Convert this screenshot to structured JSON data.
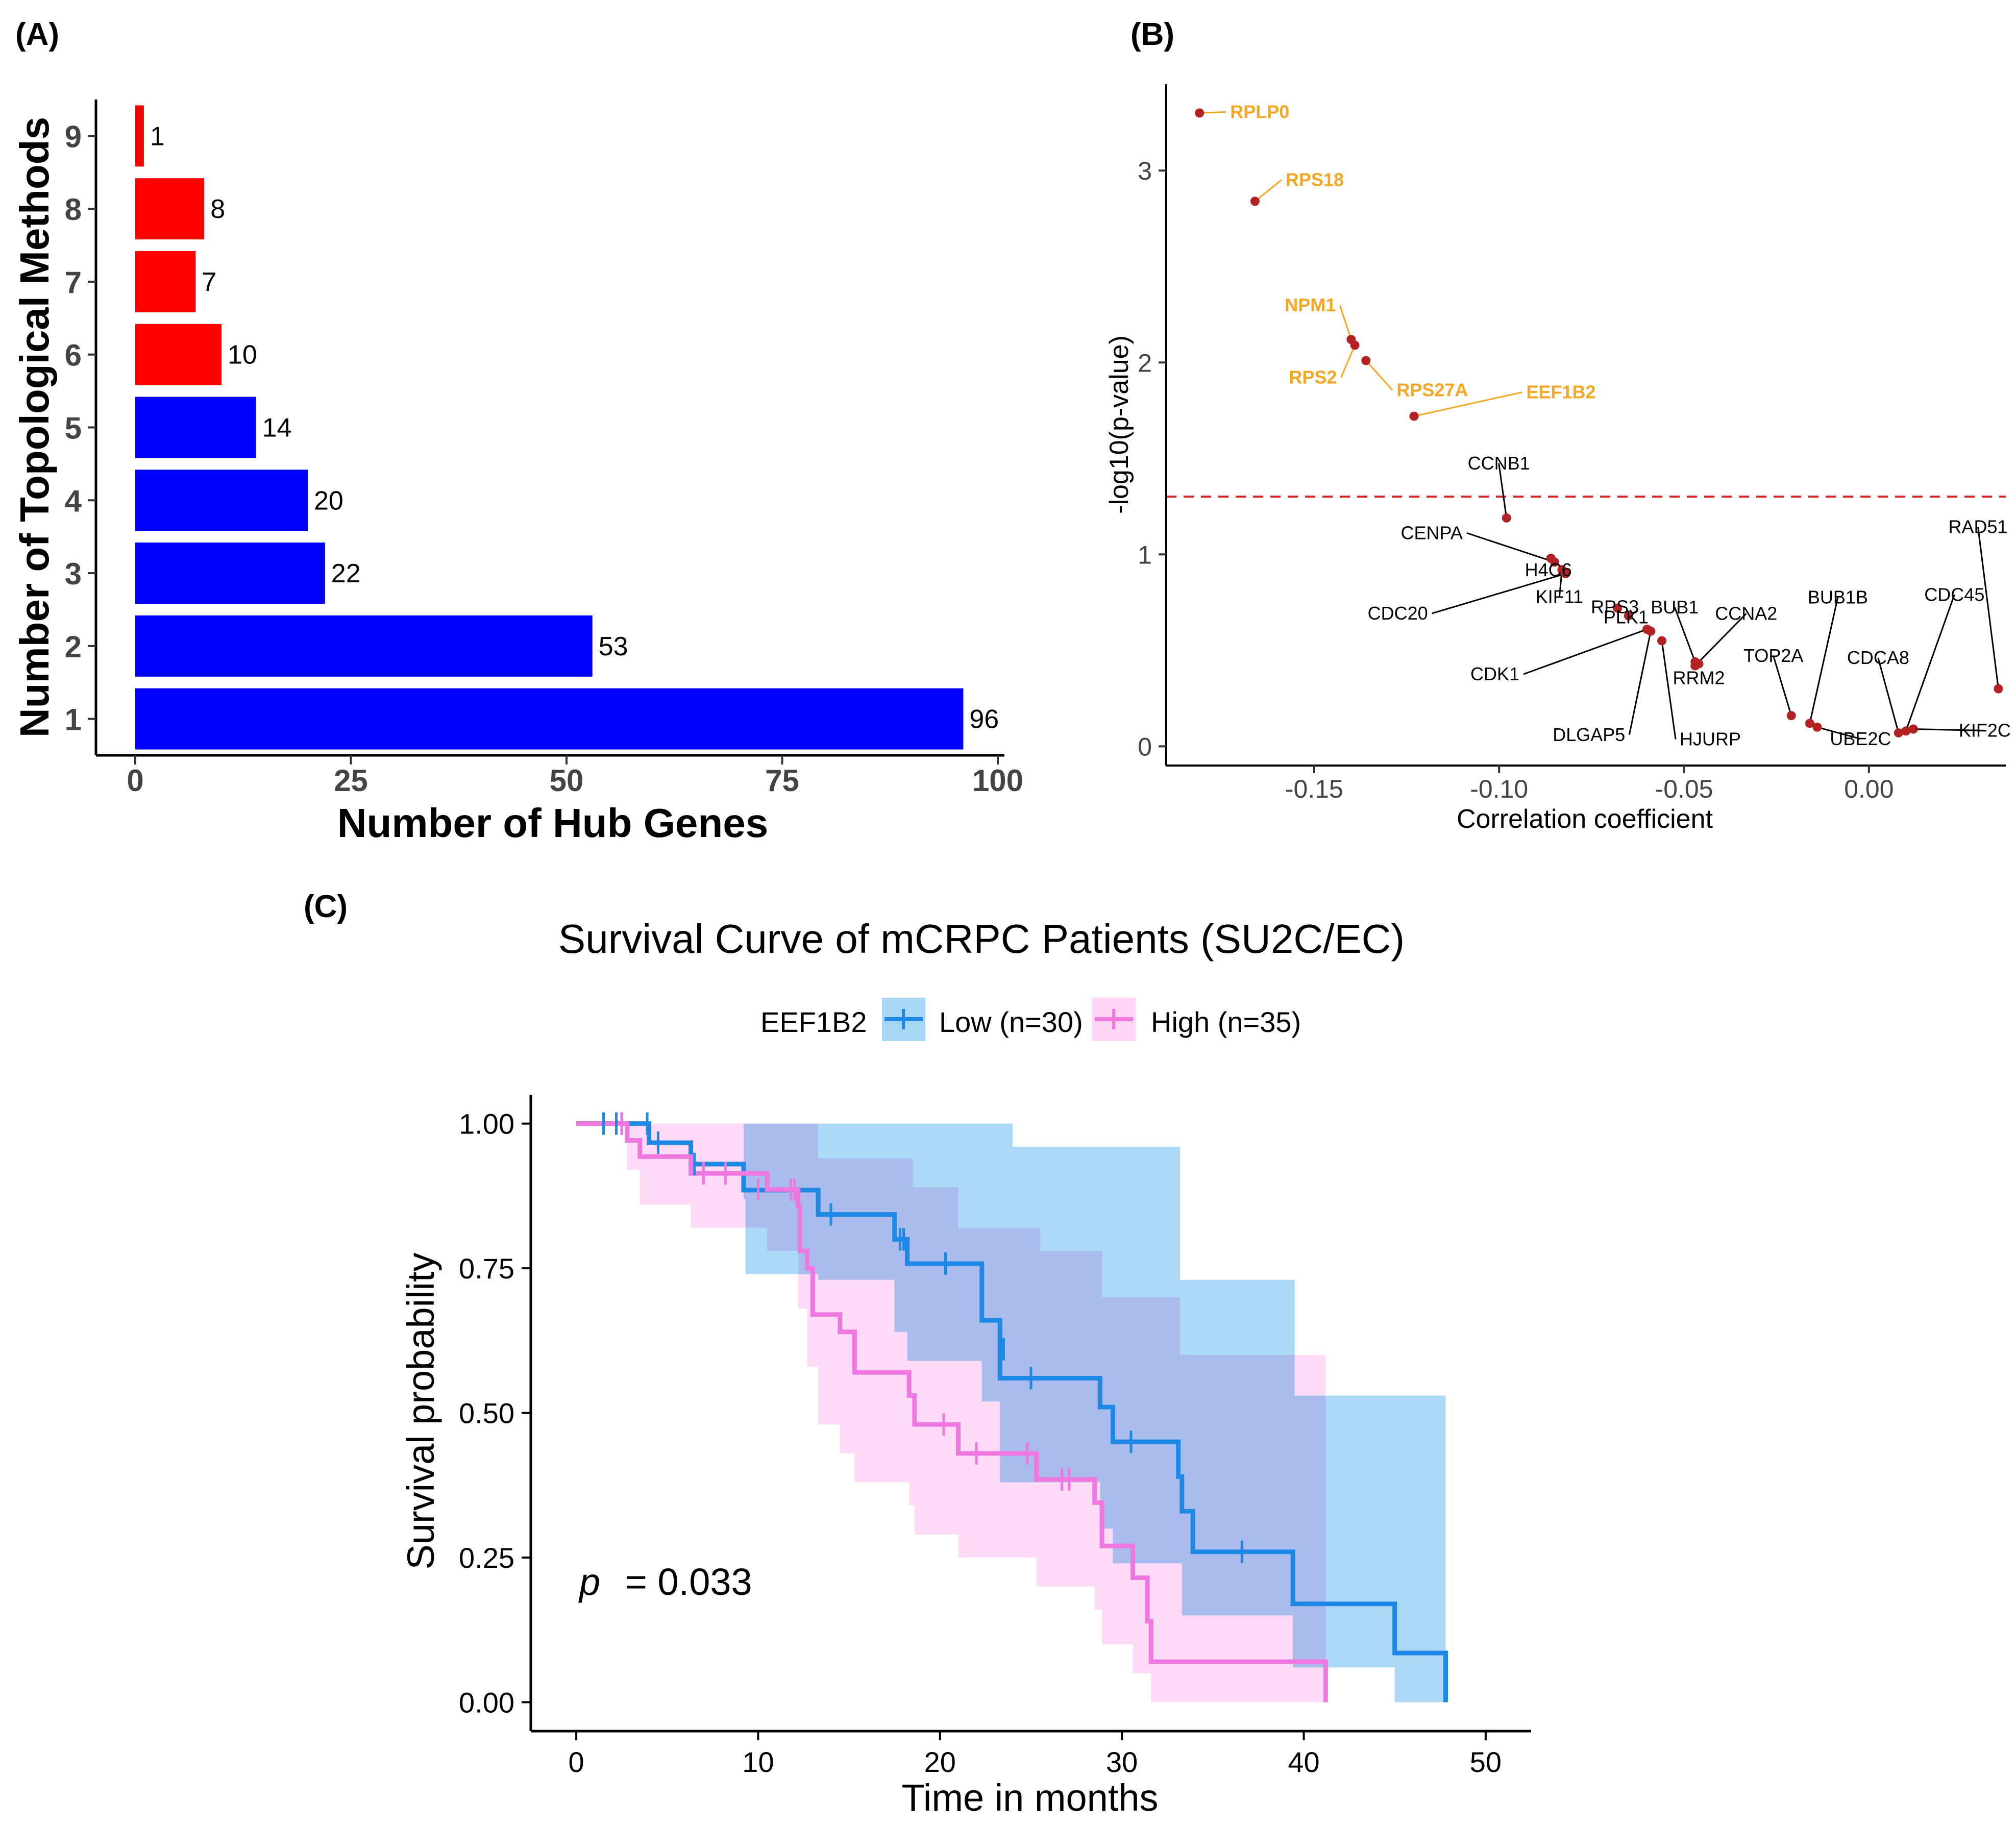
{
  "chart_data": [
    {
      "panel": "(A)",
      "type": "bar",
      "orientation": "horizontal",
      "xlabel": "Number of Hub Genes",
      "ylabel": "Number of Topological Methods",
      "xlim": [
        0,
        100
      ],
      "xticks": [
        0,
        25,
        50,
        75,
        100
      ],
      "categories": [
        "1",
        "2",
        "3",
        "4",
        "5",
        "6",
        "7",
        "8",
        "9"
      ],
      "values": [
        96,
        53,
        22,
        20,
        14,
        10,
        7,
        8,
        1
      ],
      "colors": [
        "#0000ff",
        "#0000ff",
        "#0000ff",
        "#0000ff",
        "#0000ff",
        "#ff0000",
        "#ff0000",
        "#ff0000",
        "#ff0000"
      ]
    },
    {
      "panel": "(B)",
      "type": "scatter",
      "xlabel": "Correlation coefficient",
      "ylabel": "-log10(p-value)",
      "xlim": [
        -0.19,
        0.037
      ],
      "ylim": [
        -0.1,
        3.45
      ],
      "xticks": [
        -0.15,
        -0.1,
        -0.05,
        0.0
      ],
      "xtick_labels": [
        "-0.15",
        "-0.10",
        "-0.05",
        "0.00"
      ],
      "yticks": [
        0,
        1,
        2,
        3
      ],
      "threshold": 1.301,
      "point_color": "#b22222",
      "threshold_color": "#d62728",
      "highlight_color": "#f5a623",
      "points": [
        {
          "label": "RPLP0",
          "x": -0.181,
          "y": 3.3,
          "highlight": true
        },
        {
          "label": "RPS18",
          "x": -0.166,
          "y": 2.84,
          "highlight": true
        },
        {
          "label": "NPM1",
          "x": -0.14,
          "y": 2.12,
          "highlight": true
        },
        {
          "label": "RPS2",
          "x": -0.139,
          "y": 2.09,
          "highlight": true
        },
        {
          "label": "RPS27A",
          "x": -0.136,
          "y": 2.01,
          "highlight": true
        },
        {
          "label": "EEF1B2",
          "x": -0.123,
          "y": 1.72,
          "highlight": true
        },
        {
          "label": "CCNB1",
          "x": -0.098,
          "y": 1.19,
          "highlight": false
        },
        {
          "label": "H4C6",
          "x": -0.086,
          "y": 0.98,
          "highlight": false
        },
        {
          "label": "CENPA",
          "x": -0.085,
          "y": 0.96,
          "highlight": false
        },
        {
          "label": "KIF11",
          "x": -0.083,
          "y": 0.92,
          "highlight": false
        },
        {
          "label": "CDC20",
          "x": -0.082,
          "y": 0.9,
          "highlight": false
        },
        {
          "label": "RPS3",
          "x": -0.068,
          "y": 0.72,
          "highlight": false
        },
        {
          "label": "PLK1",
          "x": -0.065,
          "y": 0.68,
          "highlight": false
        },
        {
          "label": "CDK1",
          "x": -0.06,
          "y": 0.61,
          "highlight": false
        },
        {
          "label": "DLGAP5",
          "x": -0.059,
          "y": 0.6,
          "highlight": false
        },
        {
          "label": "HJURP",
          "x": -0.056,
          "y": 0.55,
          "highlight": false
        },
        {
          "label": "BUB1",
          "x": -0.047,
          "y": 0.44,
          "highlight": false
        },
        {
          "label": "CCNA2",
          "x": -0.047,
          "y": 0.42,
          "highlight": false
        },
        {
          "label": "RRM2",
          "x": -0.046,
          "y": 0.43,
          "highlight": false
        },
        {
          "label": "TOP2A",
          "x": -0.021,
          "y": 0.16,
          "highlight": false
        },
        {
          "label": "BUB1B",
          "x": -0.016,
          "y": 0.12,
          "highlight": false
        },
        {
          "label": "UBE2C",
          "x": -0.014,
          "y": 0.1,
          "highlight": false
        },
        {
          "label": "CDCA8",
          "x": 0.008,
          "y": 0.07,
          "highlight": false
        },
        {
          "label": "KIF2C",
          "x": 0.012,
          "y": 0.09,
          "highlight": false
        },
        {
          "label": "CDC45",
          "x": 0.01,
          "y": 0.08,
          "highlight": false
        },
        {
          "label": "RAD51",
          "x": 0.035,
          "y": 0.3,
          "highlight": false
        }
      ]
    },
    {
      "panel": "(C)",
      "type": "line",
      "title": "Survival Curve of mCRPC Patients (SU2C/EC)",
      "xlabel": "Time in months",
      "ylabel": "Survival probability",
      "xlim": [
        -2.5,
        52.5
      ],
      "ylim": [
        -0.05,
        1.05
      ],
      "xticks": [
        0,
        10,
        20,
        30,
        40,
        50
      ],
      "yticks": [
        0,
        0.25,
        0.5,
        0.75,
        1.0
      ],
      "ytick_labels": [
        "0.00",
        "0.25",
        "0.50",
        "0.75",
        "1.00"
      ],
      "legend_title": "EEF1B2",
      "legend_position": "top",
      "annotation_p": "p",
      "annotation_value": "= 0.033",
      "series": [
        {
          "name": "Low (n=30)",
          "color": "#1e88e5",
          "band_color": "#a8d8f5",
          "steps": [
            [
              0,
              1.0
            ],
            [
              4,
              0.967
            ],
            [
              6.3,
              0.93
            ],
            [
              9.2,
              0.885
            ],
            [
              13.3,
              0.843
            ],
            [
              17.5,
              0.8
            ],
            [
              18.2,
              0.758
            ],
            [
              22.3,
              0.71
            ],
            [
              22.3,
              0.66
            ],
            [
              23.3,
              0.56
            ],
            [
              28.8,
              0.51
            ],
            [
              29.5,
              0.45
            ],
            [
              33.1,
              0.39
            ],
            [
              33.3,
              0.33
            ],
            [
              33.9,
              0.26
            ],
            [
              39.4,
              0.17
            ],
            [
              45,
              0.085
            ],
            [
              47.8,
              0.0
            ]
          ],
          "end": 47.8,
          "censor": [
            [
              1.5,
              1.0
            ],
            [
              2.2,
              1.0
            ],
            [
              2.5,
              1.0
            ],
            [
              3.9,
              1.0
            ],
            [
              4.5,
              0.967
            ],
            [
              6.5,
              0.93
            ],
            [
              14,
              0.843
            ],
            [
              17.8,
              0.8
            ],
            [
              18,
              0.8
            ],
            [
              20.3,
              0.758
            ],
            [
              23.5,
              0.61
            ],
            [
              25,
              0.56
            ],
            [
              30.5,
              0.45
            ],
            [
              36.6,
              0.26
            ]
          ],
          "upper": [
            [
              0,
              1.0
            ],
            [
              12.2,
              1.0
            ],
            [
              22.3,
              1.0
            ],
            [
              24,
              0.96
            ],
            [
              33.2,
              0.73
            ],
            [
              39.5,
              0.53
            ],
            [
              47.8,
              0.52
            ]
          ],
          "lower": [
            [
              0,
              1.0
            ],
            [
              9.2,
              0.87
            ],
            [
              9.3,
              0.74
            ],
            [
              13.3,
              0.73
            ],
            [
              17.5,
              0.64
            ],
            [
              18.2,
              0.59
            ],
            [
              22.3,
              0.52
            ],
            [
              23.3,
              0.38
            ],
            [
              28.8,
              0.3
            ],
            [
              29.5,
              0.24
            ],
            [
              33.3,
              0.15
            ],
            [
              39.4,
              0.06
            ],
            [
              45,
              0.06
            ],
            [
              45,
              0.0
            ],
            [
              47.8,
              0.0
            ]
          ]
        },
        {
          "name": "High (n=35)",
          "color": "#ee77e0",
          "band_color": "#fdd5f5",
          "steps": [
            [
              0,
              1.0
            ],
            [
              2.8,
              0.971
            ],
            [
              3.5,
              0.943
            ],
            [
              6.3,
              0.914
            ],
            [
              10.5,
              0.886
            ],
            [
              12.2,
              0.857
            ],
            [
              12.3,
              0.78
            ],
            [
              12.7,
              0.75
            ],
            [
              13,
              0.67
            ],
            [
              14.5,
              0.64
            ],
            [
              15.3,
              0.57
            ],
            [
              18.3,
              0.53
            ],
            [
              18.6,
              0.48
            ],
            [
              21,
              0.43
            ],
            [
              25.3,
              0.385
            ],
            [
              28.5,
              0.345
            ],
            [
              28.9,
              0.27
            ],
            [
              30.6,
              0.215
            ],
            [
              31.4,
              0.14
            ],
            [
              31.6,
              0.07
            ],
            [
              41.2,
              0.0
            ]
          ],
          "end": 41.2,
          "censor": [
            [
              2.5,
              1.0
            ],
            [
              7.0,
              0.914
            ],
            [
              8.2,
              0.914
            ],
            [
              10.0,
              0.886
            ],
            [
              11.8,
              0.886
            ],
            [
              12.0,
              0.886
            ],
            [
              20.2,
              0.48
            ],
            [
              22.0,
              0.43
            ],
            [
              24.8,
              0.43
            ],
            [
              26.7,
              0.385
            ],
            [
              27.1,
              0.385
            ]
          ],
          "upper": [
            [
              0,
              1.0
            ],
            [
              12.2,
              1.0
            ],
            [
              13.3,
              0.94
            ],
            [
              18.5,
              0.89
            ],
            [
              21,
              0.82
            ],
            [
              25.5,
              0.78
            ],
            [
              28.9,
              0.7
            ],
            [
              33.2,
              0.6
            ],
            [
              41.2,
              0.6
            ]
          ],
          "lower": [
            [
              0,
              1.0
            ],
            [
              2.8,
              0.92
            ],
            [
              3.5,
              0.86
            ],
            [
              6.3,
              0.82
            ],
            [
              10.5,
              0.78
            ],
            [
              12.2,
              0.68
            ],
            [
              12.7,
              0.58
            ],
            [
              13.3,
              0.48
            ],
            [
              14.5,
              0.43
            ],
            [
              15.3,
              0.38
            ],
            [
              18.3,
              0.34
            ],
            [
              18.6,
              0.29
            ],
            [
              21,
              0.25
            ],
            [
              25.3,
              0.2
            ],
            [
              28.5,
              0.16
            ],
            [
              28.9,
              0.1
            ],
            [
              30.6,
              0.05
            ],
            [
              31.6,
              0.0
            ],
            [
              41.2,
              0.0
            ]
          ]
        }
      ]
    }
  ]
}
